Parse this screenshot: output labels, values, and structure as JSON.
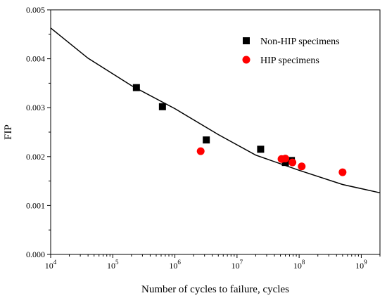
{
  "chart_data": {
    "type": "scatter",
    "xlabel": "Number of cycles to failure, cycles",
    "ylabel": "FIP",
    "x_scale": "log",
    "xlim": [
      10000,
      2000000000
    ],
    "ylim": [
      0,
      0.005
    ],
    "y_ticks": [
      "0.000",
      "0.001",
      "0.002",
      "0.003",
      "0.004",
      "0.005"
    ],
    "x_tick_exponents": [
      4,
      5,
      6,
      7,
      8,
      9
    ],
    "x_tick_base": "10",
    "grid": false,
    "legend_position": "top-right",
    "series": [
      {
        "name": "Non-HIP specimens",
        "marker": "square",
        "color": "#000000",
        "points": [
          {
            "x": 240000,
            "y": 0.00341
          },
          {
            "x": 630000,
            "y": 0.00302
          },
          {
            "x": 3200000,
            "y": 0.00234
          },
          {
            "x": 24000000,
            "y": 0.00215
          },
          {
            "x": 60000000,
            "y": 0.00188
          },
          {
            "x": 75000000,
            "y": 0.00192
          }
        ]
      },
      {
        "name": "HIP specimens",
        "marker": "circle",
        "color": "#ff0000",
        "points": [
          {
            "x": 2600000,
            "y": 0.00211
          },
          {
            "x": 52000000,
            "y": 0.00195
          },
          {
            "x": 60000000,
            "y": 0.00196
          },
          {
            "x": 78000000,
            "y": 0.00188
          },
          {
            "x": 110000000,
            "y": 0.0018
          },
          {
            "x": 500000000,
            "y": 0.00168
          }
        ]
      },
      {
        "marker": "line",
        "color": "#000000",
        "points": [
          {
            "x": 10000,
            "y": 0.00463
          },
          {
            "x": 40000,
            "y": 0.00401
          },
          {
            "x": 200000,
            "y": 0.00345
          },
          {
            "x": 1000000,
            "y": 0.00298
          },
          {
            "x": 5000000,
            "y": 0.00245
          },
          {
            "x": 20000000,
            "y": 0.00203
          },
          {
            "x": 100000000,
            "y": 0.00172
          },
          {
            "x": 500000000,
            "y": 0.00143
          },
          {
            "x": 2000000000,
            "y": 0.00126
          }
        ]
      }
    ]
  }
}
